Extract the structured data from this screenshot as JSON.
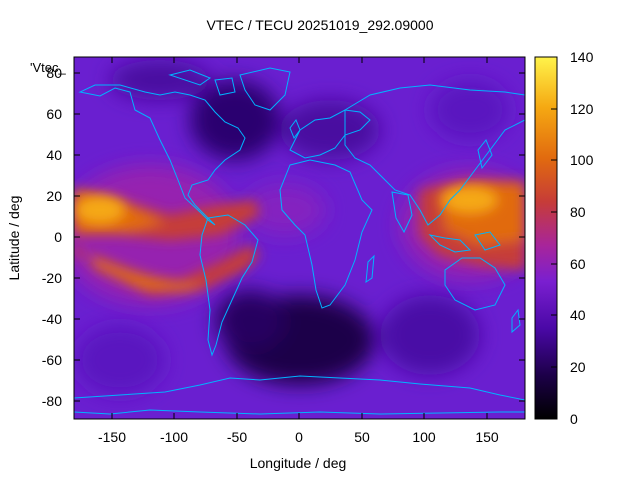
{
  "title": "VTEC / TECU 20251019_292.09000",
  "map_label": "'Vtec_",
  "x_axis": {
    "label": "Longitude / deg",
    "range": [
      -180,
      180
    ],
    "ticks": [
      "-150",
      "-100",
      "-50",
      "0",
      "50",
      "100",
      "150"
    ]
  },
  "y_axis": {
    "label": "Latitude / deg",
    "range": [
      -90,
      90
    ],
    "ticks": [
      "-80",
      "-60",
      "-40",
      "-20",
      "0",
      "20",
      "40",
      "60",
      "80"
    ]
  },
  "colorbar": {
    "range": [
      0,
      140
    ],
    "ticks": [
      "0",
      "20",
      "40",
      "60",
      "80",
      "100",
      "120",
      "140"
    ],
    "palette": [
      "#000000",
      "#1c0048",
      "#4a08a6",
      "#7a1fd0",
      "#a8259a",
      "#c63c38",
      "#e16a0f",
      "#f5a812",
      "#fff34a"
    ]
  },
  "colors": {
    "coastline": "#00b4ff",
    "background_field": "#6a1fd0"
  }
}
